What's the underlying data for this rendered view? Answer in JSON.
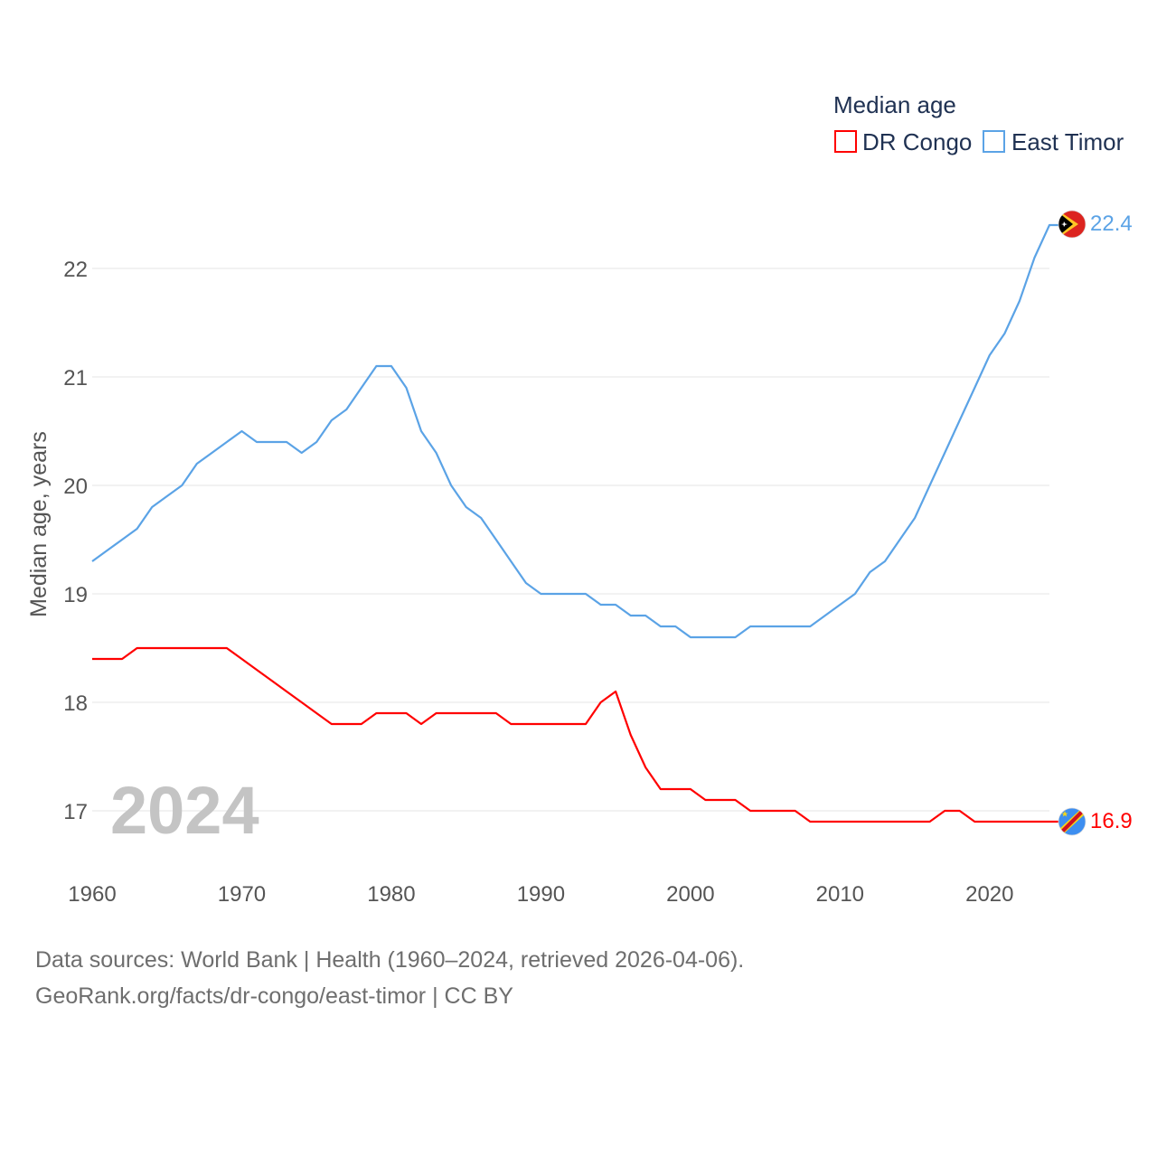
{
  "legend": {
    "title": "Median age",
    "items": [
      {
        "name": "DR Congo",
        "color": "#ff0000"
      },
      {
        "name": "East Timor",
        "color": "#5ba3e6"
      }
    ]
  },
  "year_label": "2024",
  "sources": {
    "line1": "Data sources: World Bank | Health (1960–2024, retrieved 2026-04-06).",
    "line2": "GeoRank.org/facts/dr-congo/east-timor | CC BY"
  },
  "colors": {
    "dr_congo": "#ff0000",
    "east_timor": "#5ba3e6",
    "grid": "#e6e6e6",
    "axis_text": "#555555",
    "year_watermark": "#c4c4c4",
    "legend_text": "#1f3152"
  },
  "chart_data": {
    "type": "line",
    "title": "Median age",
    "xlabel": "",
    "ylabel": "Median age, years",
    "xlim": [
      1960,
      2024
    ],
    "ylim": [
      16.5,
      22.6
    ],
    "xticks": [
      1960,
      1970,
      1980,
      1990,
      2000,
      2010,
      2020
    ],
    "yticks": [
      17,
      18,
      19,
      20,
      21,
      22
    ],
    "grid": true,
    "legend_position": "top-right",
    "series": [
      {
        "name": "DR Congo",
        "color": "#ff0000",
        "end_label": "16.9",
        "x": [
          1960,
          1961,
          1962,
          1963,
          1964,
          1965,
          1966,
          1967,
          1968,
          1969,
          1970,
          1971,
          1972,
          1973,
          1974,
          1975,
          1976,
          1977,
          1978,
          1979,
          1980,
          1981,
          1982,
          1983,
          1984,
          1985,
          1986,
          1987,
          1988,
          1989,
          1990,
          1991,
          1992,
          1993,
          1994,
          1995,
          1996,
          1997,
          1998,
          1999,
          2000,
          2001,
          2002,
          2003,
          2004,
          2005,
          2006,
          2007,
          2008,
          2009,
          2010,
          2011,
          2012,
          2013,
          2014,
          2015,
          2016,
          2017,
          2018,
          2019,
          2020,
          2021,
          2022,
          2023,
          2024
        ],
        "y": [
          18.4,
          18.4,
          18.4,
          18.5,
          18.5,
          18.5,
          18.5,
          18.5,
          18.5,
          18.5,
          18.4,
          18.3,
          18.2,
          18.1,
          18.0,
          17.9,
          17.8,
          17.8,
          17.8,
          17.9,
          17.9,
          17.9,
          17.8,
          17.9,
          17.9,
          17.9,
          17.9,
          17.9,
          17.8,
          17.8,
          17.8,
          17.8,
          17.8,
          17.8,
          18.0,
          18.1,
          17.7,
          17.4,
          17.2,
          17.2,
          17.2,
          17.1,
          17.1,
          17.1,
          17.0,
          17.0,
          17.0,
          17.0,
          16.9,
          16.9,
          16.9,
          16.9,
          16.9,
          16.9,
          16.9,
          16.9,
          16.9,
          17.0,
          17.0,
          16.9,
          16.9,
          16.9,
          16.9,
          16.9,
          16.9
        ]
      },
      {
        "name": "East Timor",
        "color": "#5ba3e6",
        "end_label": "22.4",
        "x": [
          1960,
          1961,
          1962,
          1963,
          1964,
          1965,
          1966,
          1967,
          1968,
          1969,
          1970,
          1971,
          1972,
          1973,
          1974,
          1975,
          1976,
          1977,
          1978,
          1979,
          1980,
          1981,
          1982,
          1983,
          1984,
          1985,
          1986,
          1987,
          1988,
          1989,
          1990,
          1991,
          1992,
          1993,
          1994,
          1995,
          1996,
          1997,
          1998,
          1999,
          2000,
          2001,
          2002,
          2003,
          2004,
          2005,
          2006,
          2007,
          2008,
          2009,
          2010,
          2011,
          2012,
          2013,
          2014,
          2015,
          2016,
          2017,
          2018,
          2019,
          2020,
          2021,
          2022,
          2023,
          2024
        ],
        "y": [
          19.3,
          19.4,
          19.5,
          19.6,
          19.8,
          19.9,
          20.0,
          20.2,
          20.3,
          20.4,
          20.5,
          20.4,
          20.4,
          20.4,
          20.3,
          20.4,
          20.6,
          20.7,
          20.9,
          21.1,
          21.1,
          20.9,
          20.5,
          20.3,
          20.0,
          19.8,
          19.7,
          19.5,
          19.3,
          19.1,
          19.0,
          19.0,
          19.0,
          19.0,
          18.9,
          18.9,
          18.8,
          18.8,
          18.7,
          18.7,
          18.6,
          18.6,
          18.6,
          18.6,
          18.7,
          18.7,
          18.7,
          18.7,
          18.7,
          18.8,
          18.9,
          19.0,
          19.2,
          19.3,
          19.5,
          19.7,
          20.0,
          20.3,
          20.6,
          20.9,
          21.2,
          21.4,
          21.7,
          22.1,
          22.4
        ]
      }
    ]
  }
}
